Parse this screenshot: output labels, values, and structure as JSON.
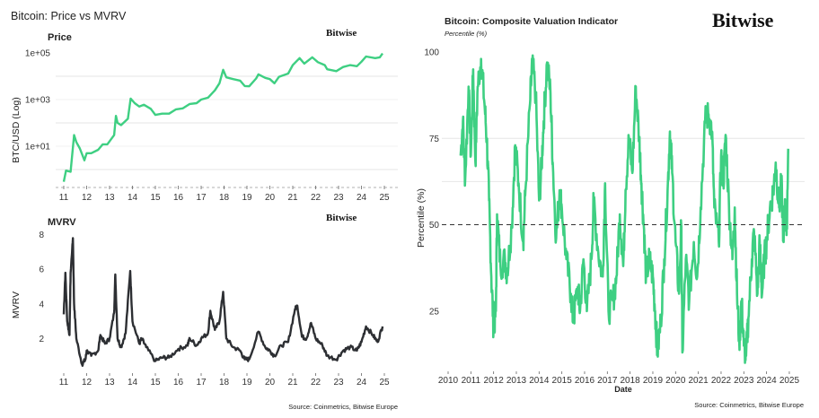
{
  "left_panel": {
    "title": "Bitcoin: Price vs MVRV",
    "source": "Source: Coinmetrics, Bitwise Europe",
    "logo": "Bitwise"
  },
  "right_panel": {
    "logo": "Bitwise",
    "source": "Source: Coinmetrics, Bitwise Europe"
  },
  "colors": {
    "price": "#3ecf82",
    "mvrv": "#2d2f33",
    "cvi": "#3ecf82",
    "grid": "#e6e6e6"
  },
  "chart_data": [
    {
      "type": "line",
      "title": "Price",
      "ylabel": "BTC/USD (Log)",
      "xlabel": "",
      "yscale": "log",
      "ylim": [
        0.1,
        200000
      ],
      "yticks": [
        "1e+01",
        "1e+03",
        "1e+05"
      ],
      "xticks": [
        "11",
        "12",
        "13",
        "14",
        "15",
        "16",
        "17",
        "18",
        "19",
        "20",
        "21",
        "22",
        "23",
        "24",
        "25"
      ],
      "grid": true,
      "series": [
        {
          "x": [
            2011.0,
            2011.1,
            2011.3,
            2011.45,
            2011.55,
            2011.7,
            2011.9,
            2012.0,
            2012.2,
            2012.5,
            2012.7,
            2012.9,
            2013.2,
            2013.28,
            2013.35,
            2013.5,
            2013.8,
            2013.92,
            2014.1,
            2014.3,
            2014.5,
            2014.8,
            2015.0,
            2015.3,
            2015.6,
            2015.9,
            2016.2,
            2016.5,
            2016.8,
            2017.0,
            2017.3,
            2017.6,
            2017.8,
            2017.96,
            2018.1,
            2018.4,
            2018.7,
            2018.9,
            2019.1,
            2019.4,
            2019.5,
            2019.8,
            2020.0,
            2020.2,
            2020.4,
            2020.8,
            2021.0,
            2021.3,
            2021.5,
            2021.85,
            2022.1,
            2022.4,
            2022.5,
            2022.9,
            2023.2,
            2023.5,
            2023.8,
            2024.0,
            2024.2,
            2024.6,
            2024.8,
            2024.92
          ],
          "y": [
            0.3,
            0.9,
            0.8,
            30,
            15,
            8,
            2.5,
            5,
            5,
            7,
            12,
            12,
            30,
            200,
            100,
            80,
            150,
            1100,
            700,
            500,
            600,
            400,
            220,
            250,
            250,
            380,
            420,
            650,
            700,
            1000,
            1200,
            2500,
            5000,
            19000,
            9000,
            7500,
            6500,
            3800,
            3700,
            8000,
            12000,
            8500,
            7500,
            5000,
            9500,
            13000,
            30000,
            60000,
            35000,
            65000,
            40000,
            30000,
            20000,
            16500,
            25000,
            30000,
            27000,
            42000,
            70000,
            60000,
            65000,
            95000
          ]
        }
      ]
    },
    {
      "type": "line",
      "title": "MVRV",
      "ylabel": "MVRV",
      "xlabel": "",
      "ylim": [
        0,
        8.5
      ],
      "yticks": [
        "2",
        "4",
        "6",
        "8"
      ],
      "xticks": [
        "11",
        "12",
        "13",
        "14",
        "15",
        "16",
        "17",
        "18",
        "19",
        "20",
        "21",
        "22",
        "23",
        "24",
        "25"
      ],
      "grid": false,
      "series": [
        {
          "x": [
            2011.0,
            2011.07,
            2011.15,
            2011.25,
            2011.3,
            2011.4,
            2011.45,
            2011.55,
            2011.8,
            2011.95,
            2012.0,
            2012.2,
            2012.5,
            2012.6,
            2012.8,
            2013.0,
            2013.2,
            2013.25,
            2013.35,
            2013.5,
            2013.7,
            2013.9,
            2014.0,
            2014.3,
            2014.4,
            2014.6,
            2015.0,
            2015.3,
            2015.6,
            2016.0,
            2016.4,
            2016.5,
            2016.8,
            2017.0,
            2017.3,
            2017.4,
            2017.6,
            2017.8,
            2017.96,
            2018.1,
            2018.4,
            2018.7,
            2018.9,
            2019.1,
            2019.5,
            2019.8,
            2020.0,
            2020.2,
            2020.5,
            2020.8,
            2021.1,
            2021.2,
            2021.4,
            2021.6,
            2021.8,
            2022.0,
            2022.3,
            2022.5,
            2022.9,
            2023.2,
            2023.5,
            2023.8,
            2024.0,
            2024.2,
            2024.5,
            2024.7,
            2024.92
          ],
          "y": [
            3.4,
            5.8,
            3.0,
            2.2,
            5.8,
            7.8,
            4.0,
            2.0,
            0.5,
            0.8,
            1.3,
            1.0,
            1.3,
            2.2,
            1.7,
            2.0,
            3.5,
            5.7,
            2.0,
            1.5,
            2.3,
            5.9,
            3.0,
            1.7,
            2.0,
            1.5,
            0.7,
            0.9,
            0.9,
            1.4,
            1.6,
            2.0,
            1.6,
            2.0,
            2.3,
            3.6,
            2.5,
            3.0,
            4.7,
            2.0,
            1.5,
            1.3,
            0.8,
            0.8,
            2.4,
            1.5,
            1.3,
            1.0,
            1.6,
            1.8,
            3.7,
            3.9,
            2.1,
            2.0,
            2.9,
            2.0,
            1.6,
            1.0,
            0.8,
            1.3,
            1.5,
            1.3,
            1.8,
            2.7,
            2.2,
            1.8,
            2.7
          ]
        }
      ]
    },
    {
      "type": "line",
      "title": "Bitcoin: Composite Valuation Indicator",
      "subtitle": "Percentile (%)",
      "ylabel": "Percentile (%)",
      "xlabel": "Date",
      "ylim": [
        0,
        100
      ],
      "yticks": [
        "25",
        "50",
        "75",
        "100"
      ],
      "xticks": [
        "2010",
        "2011",
        "2012",
        "2013",
        "2014",
        "2015",
        "2016",
        "2017",
        "2018",
        "2019",
        "2020",
        "2021",
        "2022",
        "2023",
        "2024",
        "2025"
      ],
      "reference_line": {
        "y": 50,
        "style": "dashed"
      },
      "grid": true,
      "series": [
        {
          "x": [
            2010.55,
            2010.65,
            2010.75,
            2010.9,
            2011.0,
            2011.1,
            2011.2,
            2011.3,
            2011.45,
            2011.6,
            2011.7,
            2011.8,
            2011.9,
            2012.0,
            2012.1,
            2012.15,
            2012.3,
            2012.5,
            2012.6,
            2012.8,
            2012.95,
            2013.1,
            2013.3,
            2013.4,
            2013.6,
            2013.7,
            2013.85,
            2014.0,
            2014.1,
            2014.2,
            2014.35,
            2014.5,
            2014.6,
            2014.75,
            2014.9,
            2015.0,
            2015.2,
            2015.4,
            2015.5,
            2015.7,
            2015.8,
            2015.95,
            2016.1,
            2016.3,
            2016.4,
            2016.6,
            2016.8,
            2016.9,
            2017.05,
            2017.25,
            2017.4,
            2017.55,
            2017.7,
            2017.8,
            2017.95,
            2018.1,
            2018.25,
            2018.4,
            2018.5,
            2018.6,
            2018.7,
            2018.85,
            2019.0,
            2019.1,
            2019.2,
            2019.35,
            2019.5,
            2019.65,
            2019.75,
            2019.85,
            2020.0,
            2020.15,
            2020.25,
            2020.3,
            2020.45,
            2020.6,
            2020.8,
            2020.95,
            2021.1,
            2021.3,
            2021.45,
            2021.6,
            2021.7,
            2021.9,
            2022.0,
            2022.1,
            2022.2,
            2022.35,
            2022.5,
            2022.6,
            2022.7,
            2022.8,
            2022.9,
            2023.0,
            2023.1,
            2023.2,
            2023.35,
            2023.45,
            2023.6,
            2023.7,
            2023.8,
            2023.9,
            2024.0,
            2024.15,
            2024.3,
            2024.4,
            2024.55,
            2024.65,
            2024.75,
            2024.8,
            2024.88,
            2024.95
          ],
          "y": [
            70,
            80,
            63,
            90,
            70,
            95,
            68,
            90,
            98,
            85,
            75,
            57,
            35,
            20,
            25,
            53,
            38,
            40,
            36,
            50,
            73,
            62,
            45,
            60,
            85,
            97,
            88,
            57,
            66,
            80,
            97,
            88,
            68,
            46,
            60,
            55,
            40,
            30,
            22,
            32,
            25,
            40,
            25,
            40,
            57,
            42,
            35,
            62,
            25,
            28,
            35,
            53,
            38,
            60,
            75,
            65,
            90,
            75,
            62,
            50,
            35,
            40,
            35,
            25,
            13,
            22,
            40,
            60,
            77,
            65,
            45,
            30,
            50,
            13,
            40,
            28,
            45,
            35,
            55,
            80,
            82,
            77,
            55,
            45,
            70,
            62,
            76,
            55,
            40,
            55,
            30,
            16,
            28,
            15,
            12,
            23,
            40,
            48,
            30,
            45,
            30,
            40,
            45,
            55,
            60,
            68,
            55,
            62,
            45,
            55,
            47,
            72
          ]
        }
      ]
    }
  ]
}
